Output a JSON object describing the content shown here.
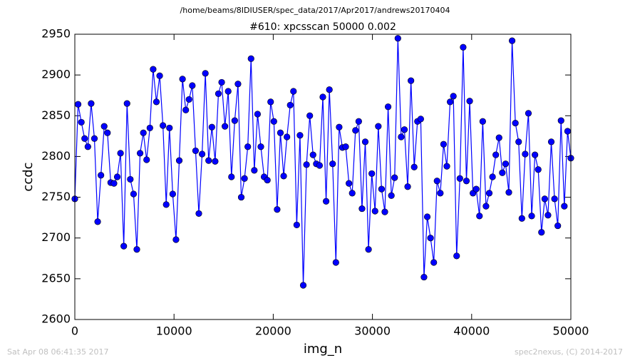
{
  "chart_data": {
    "type": "line",
    "suptitle": "/home/beams/8IDIUSER/spec_data/2017/Apr2017/andrews20170404",
    "title": "#610: xpcsscan 50000 0.002",
    "xlabel": "img_n",
    "ylabel": "ccdc",
    "footer_left": "Sat Apr 08 06:41:35 2017",
    "footer_right": "spec2nexus, (C) 2014-2017",
    "xlim": [
      0,
      50000
    ],
    "xticks": [
      0,
      10000,
      20000,
      30000,
      40000,
      50000
    ],
    "ylim": [
      2600,
      2950
    ],
    "yticks": [
      2600,
      2650,
      2700,
      2750,
      2800,
      2850,
      2900,
      2950
    ],
    "grid": false,
    "x": [
      0,
      329,
      658,
      987,
      1316,
      1645,
      1974,
      2303,
      2632,
      2961,
      3289,
      3618,
      3947,
      4276,
      4605,
      4934,
      5263,
      5592,
      5921,
      6250,
      6579,
      6908,
      7237,
      7566,
      7895,
      8224,
      8553,
      8882,
      9211,
      9539,
      9868,
      10197,
      10526,
      10855,
      11184,
      11513,
      11842,
      12171,
      12500,
      12829,
      13158,
      13487,
      13816,
      14145,
      14474,
      14803,
      15132,
      15461,
      15789,
      16118,
      16447,
      16776,
      17105,
      17434,
      17763,
      18092,
      18421,
      18750,
      19079,
      19408,
      19737,
      20066,
      20395,
      20724,
      21053,
      21382,
      21711,
      22039,
      22368,
      22697,
      23026,
      23355,
      23684,
      24013,
      24342,
      24671,
      25000,
      25329,
      25658,
      25987,
      26316,
      26645,
      26974,
      27303,
      27632,
      27961,
      28289,
      28618,
      28947,
      29276,
      29605,
      29934,
      30263,
      30592,
      30921,
      31250,
      31579,
      31908,
      32237,
      32566,
      32895,
      33224,
      33553,
      33882,
      34211,
      34539,
      34868,
      35197,
      35526,
      35855,
      36184,
      36513,
      36842,
      37171,
      37500,
      37829,
      38158,
      38487,
      38816,
      39145,
      39474,
      39803,
      40132,
      40461,
      40789,
      41118,
      41447,
      41776,
      42105,
      42434,
      42763,
      43092,
      43421,
      43750,
      44079,
      44408,
      44737,
      45066,
      45395,
      45724,
      46053,
      46382,
      46711,
      47039,
      47368,
      47697,
      48026,
      48355,
      48684,
      49013,
      49342,
      49671,
      50000
    ],
    "series": [
      {
        "name": "ccdc",
        "color": "#0000ff",
        "values": [
          2748,
          2864,
          2842,
          2822,
          2812,
          2865,
          2822,
          2720,
          2777,
          2837,
          2829,
          2768,
          2767,
          2775,
          2804,
          2690,
          2865,
          2772,
          2754,
          2686,
          2804,
          2829,
          2796,
          2835,
          2907,
          2867,
          2899,
          2838,
          2741,
          2835,
          2754,
          2698,
          2795,
          2895,
          2857,
          2870,
          2887,
          2807,
          2730,
          2803,
          2902,
          2795,
          2836,
          2794,
          2877,
          2891,
          2837,
          2880,
          2775,
          2844,
          2889,
          2750,
          2773,
          2812,
          2920,
          2783,
          2852,
          2812,
          2775,
          2771,
          2867,
          2843,
          2735,
          2829,
          2776,
          2824,
          2863,
          2880,
          2716,
          2826,
          2642,
          2790,
          2850,
          2802,
          2791,
          2789,
          2873,
          2745,
          2882,
          2791,
          2670,
          2836,
          2811,
          2812,
          2767,
          2755,
          2832,
          2843,
          2736,
          2818,
          2686,
          2779,
          2733,
          2837,
          2760,
          2732,
          2861,
          2752,
          2774,
          2945,
          2824,
          2833,
          2763,
          2893,
          2787,
          2843,
          2846,
          2652,
          2726,
          2700,
          2670,
          2770,
          2755,
          2815,
          2788,
          2867,
          2874,
          2678,
          2773,
          2934,
          2770,
          2868,
          2755,
          2760,
          2727,
          2843,
          2739,
          2755,
          2775,
          2802,
          2823,
          2780,
          2791,
          2756,
          2942,
          2841,
          2818,
          2724,
          2803,
          2853,
          2727,
          2802,
          2784,
          2707,
          2748,
          2728,
          2818,
          2748,
          2715,
          2844,
          2739,
          2831,
          2798
        ]
      }
    ]
  }
}
